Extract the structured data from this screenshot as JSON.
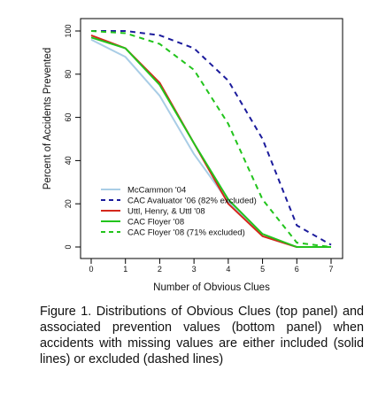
{
  "chart_data": {
    "type": "line",
    "title": "",
    "xlabel": "Number of Obvious Clues",
    "ylabel": "Percent of Accidents Prevented",
    "xlim": [
      0,
      7
    ],
    "ylim": [
      0,
      100
    ],
    "x_ticks": [
      "0",
      "1",
      "2",
      "3",
      "4",
      "5",
      "6",
      "7"
    ],
    "y_ticks": [
      "0",
      "20",
      "40",
      "60",
      "80",
      "100"
    ],
    "grid": false,
    "legend_position": "bottom-left",
    "series": [
      {
        "name": "McCammon '04",
        "color": "#a9cde6",
        "dash": "solid",
        "x": [
          0,
          1,
          2,
          3,
          4,
          5,
          6,
          7
        ],
        "y": [
          96,
          88,
          70,
          43,
          21,
          5,
          0,
          0
        ]
      },
      {
        "name": "CAC Avaluator '06 (82% excluded)",
        "color": "#1c1c9c",
        "dash": "dashed",
        "x": [
          0,
          1,
          2,
          3,
          4,
          5,
          6,
          7
        ],
        "y": [
          100,
          100,
          98,
          92,
          77,
          50,
          10,
          1
        ]
      },
      {
        "name": "Uttl, Henry, & Uttl '08",
        "color": "#d4281c",
        "dash": "solid",
        "x": [
          0,
          1,
          2,
          3,
          4,
          5,
          6,
          7
        ],
        "y": [
          98,
          92,
          76,
          48,
          20,
          5,
          0,
          0
        ]
      },
      {
        "name": "CAC Floyer '08",
        "color": "#22c41c",
        "dash": "solid",
        "x": [
          0,
          1,
          2,
          3,
          4,
          5,
          6,
          7
        ],
        "y": [
          97,
          92,
          75,
          48,
          22,
          6,
          0,
          0
        ]
      },
      {
        "name": "CAC Floyer '08 (71% excluded)",
        "color": "#22c41c",
        "dash": "dashed",
        "x": [
          0,
          1,
          2,
          3,
          4,
          5,
          6,
          7
        ],
        "y": [
          100,
          99,
          94,
          82,
          57,
          22,
          2,
          0
        ]
      }
    ]
  },
  "caption": "Figure 1. Distributions of Obvious Clues (top panel) and associated prevention values (bottom panel) when accidents with missing values are either included (solid lines) or excluded (dashed lines)"
}
